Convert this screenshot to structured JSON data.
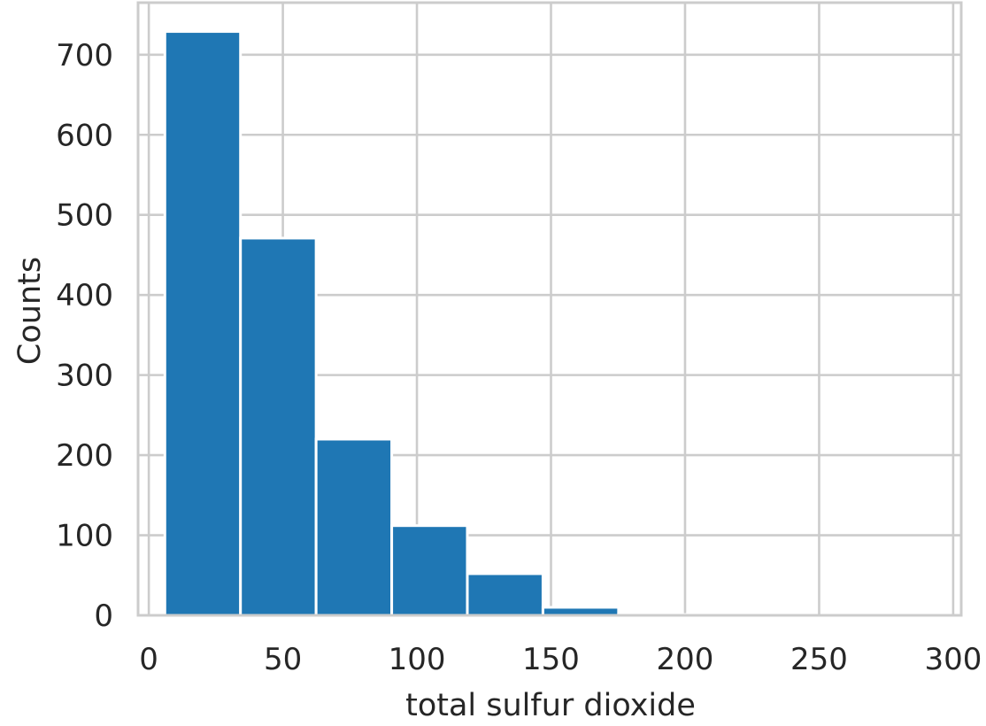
{
  "chart_data": {
    "type": "bar",
    "subtype": "histogram",
    "title": "",
    "xlabel": "total sulfur dioxide",
    "ylabel": "Counts",
    "xlim": [
      -4,
      303
    ],
    "ylim": [
      0,
      765
    ],
    "x_ticks": [
      0,
      50,
      100,
      150,
      200,
      250,
      300
    ],
    "y_ticks": [
      0,
      100,
      200,
      300,
      400,
      500,
      600,
      700
    ],
    "bins": [
      {
        "start": 6,
        "end": 34.2,
        "count": 729
      },
      {
        "start": 34.2,
        "end": 62.4,
        "count": 471
      },
      {
        "start": 62.4,
        "end": 90.6,
        "count": 220
      },
      {
        "start": 90.6,
        "end": 118.8,
        "count": 112
      },
      {
        "start": 118.8,
        "end": 147.0,
        "count": 52
      },
      {
        "start": 147.0,
        "end": 175.2,
        "count": 10
      },
      {
        "start": 175.2,
        "end": 203.4,
        "count": 1
      },
      {
        "start": 203.4,
        "end": 231.6,
        "count": 0
      },
      {
        "start": 231.6,
        "end": 259.8,
        "count": 0
      },
      {
        "start": 259.8,
        "end": 289.0,
        "count": 2
      }
    ],
    "grid": true,
    "legend": "none",
    "bar_color": "#1f77b4",
    "grid_color": "#cccccc",
    "text_color": "#262626"
  }
}
